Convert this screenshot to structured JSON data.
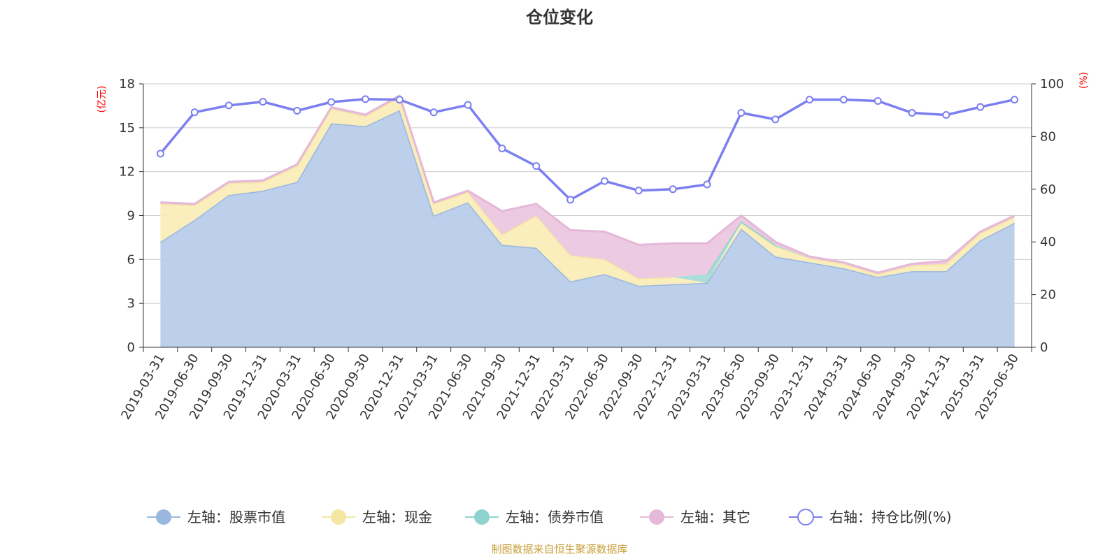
{
  "chart_data": {
    "type": "area",
    "title": "仓位变化",
    "y_left_unit": "(亿元)",
    "y_right_unit": "(%)",
    "y_left_ticks": [
      "0",
      "3",
      "6",
      "9",
      "12",
      "15",
      "18"
    ],
    "y_right_ticks": [
      "0",
      "20",
      "40",
      "60",
      "80",
      "100"
    ],
    "y_left_range": [
      0,
      18
    ],
    "y_right_range": [
      0,
      100
    ],
    "grid": true,
    "legend_position": "bottom",
    "categories": [
      "2019-03-31",
      "2019-06-30",
      "2019-09-30",
      "2019-12-31",
      "2020-03-31",
      "2020-06-30",
      "2020-09-30",
      "2020-12-31",
      "2021-03-31",
      "2021-06-30",
      "2021-09-30",
      "2021-12-31",
      "2022-03-31",
      "2022-06-30",
      "2022-09-30",
      "2022-12-31",
      "2023-03-31",
      "2023-06-30",
      "2023-09-30",
      "2023-12-31",
      "2024-03-31",
      "2024-06-30",
      "2024-09-30",
      "2024-12-31",
      "2025-03-31",
      "2025-06-30"
    ],
    "series": [
      {
        "name": "左轴：股票市值",
        "axis": "left",
        "color": "#9ab7e0",
        "fill": "#b8cdea",
        "values": [
          7.2,
          8.7,
          10.4,
          10.7,
          11.3,
          15.3,
          15.1,
          16.2,
          9.0,
          9.9,
          7.0,
          6.8,
          4.5,
          5.0,
          4.2,
          4.3,
          4.4,
          8.1,
          6.2,
          5.8,
          5.4,
          4.8,
          5.2,
          5.2,
          7.3,
          8.5
        ]
      },
      {
        "name": "左轴：现金",
        "axis": "left",
        "color": "#f5e6a3",
        "fill": "#fbedb9",
        "values": [
          2.6,
          1.0,
          0.8,
          0.6,
          1.1,
          1.0,
          0.7,
          0.9,
          0.8,
          0.7,
          0.7,
          2.2,
          1.8,
          1.0,
          0.5,
          0.5,
          0.0,
          0.4,
          0.7,
          0.3,
          0.3,
          0.2,
          0.4,
          0.5,
          0.5,
          0.4
        ]
      },
      {
        "name": "左轴：债券市值",
        "axis": "left",
        "color": "#8fd3cf",
        "fill": "#a7dcd8",
        "values": [
          0,
          0,
          0,
          0,
          0,
          0,
          0,
          0,
          0,
          0,
          0,
          0,
          0,
          0,
          0,
          0,
          0.6,
          0.1,
          0.1,
          0,
          0,
          0,
          0,
          0,
          0,
          0
        ]
      },
      {
        "name": "左轴：其它",
        "axis": "left",
        "color": "#e6b8d8",
        "fill": "#ebc7e0",
        "values": [
          0.1,
          0.1,
          0.1,
          0.1,
          0.1,
          0.1,
          0.1,
          0.1,
          0.1,
          0.1,
          1.6,
          0.8,
          1.7,
          1.9,
          2.3,
          2.3,
          2.1,
          0.4,
          0.2,
          0.1,
          0.1,
          0.1,
          0.1,
          0.2,
          0.1,
          0.1
        ]
      },
      {
        "name": "右轴：持仓比例(%)",
        "axis": "right",
        "color": "#7b7ff0",
        "values": [
          73.5,
          89.2,
          91.8,
          93.2,
          89.8,
          93.1,
          94.2,
          94.0,
          89.2,
          92.0,
          75.5,
          68.8,
          56.0,
          63.1,
          59.5,
          60.0,
          61.8,
          89.0,
          86.5,
          94.0,
          94.0,
          93.5,
          89.0,
          88.2,
          91.2,
          94.0
        ]
      }
    ]
  },
  "footer": {
    "source": "制图数据来自恒生聚源数据库"
  }
}
